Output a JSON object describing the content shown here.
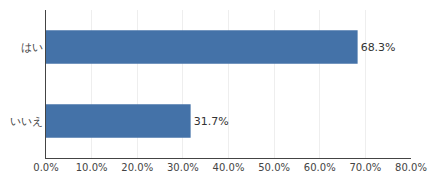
{
  "chart_data": {
    "type": "bar",
    "orientation": "horizontal",
    "categories": [
      "いいえ",
      "はい"
    ],
    "values": [
      31.7,
      68.3
    ],
    "value_labels": [
      "31.7%",
      "68.3%"
    ],
    "data_labels": true,
    "color": "#4472a8",
    "xlim": [
      0,
      80
    ],
    "xticks": [
      {
        "value": 0,
        "label": "0.0%"
      },
      {
        "value": 10,
        "label": "10.0%"
      },
      {
        "value": 20,
        "label": "20.0%"
      },
      {
        "value": 30,
        "label": "30.0%"
      },
      {
        "value": 40,
        "label": "40.0%"
      },
      {
        "value": 50,
        "label": "50.0%"
      },
      {
        "value": 60,
        "label": "60.0%"
      },
      {
        "value": 70,
        "label": "70.0%"
      },
      {
        "value": 80,
        "label": "80.0%"
      }
    ],
    "grid": true
  }
}
